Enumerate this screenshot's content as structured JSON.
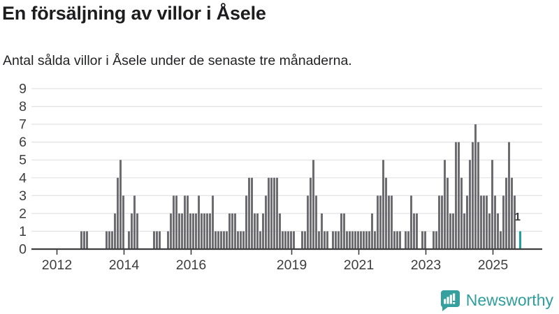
{
  "header": {
    "title": "En försäljning av villor i Åsele",
    "subtitle": "Antal sålda villor i Åsele under de senaste tre månaderna."
  },
  "chart_data": {
    "type": "bar",
    "title": "En försäljning av villor i Åsele",
    "subtitle": "Antal sålda villor i Åsele under de senaste tre månaderna.",
    "frequency": "monthly",
    "x_start_month": "2011-04",
    "x_end_month": "2025-10",
    "values": [
      0,
      0,
      0,
      0,
      0,
      0,
      0,
      0,
      0,
      0,
      0,
      0,
      0,
      0,
      0,
      0,
      0,
      1,
      1,
      1,
      0,
      0,
      0,
      0,
      0,
      0,
      1,
      1,
      1,
      2,
      4,
      5,
      3,
      0,
      1,
      2,
      3,
      2,
      0,
      0,
      0,
      0,
      0,
      1,
      1,
      1,
      0,
      0,
      1,
      2,
      3,
      3,
      2,
      2,
      3,
      3,
      2,
      2,
      2,
      3,
      2,
      2,
      2,
      2,
      3,
      1,
      1,
      1,
      1,
      1,
      2,
      2,
      2,
      1,
      1,
      1,
      3,
      4,
      4,
      2,
      2,
      1,
      2,
      3,
      4,
      4,
      4,
      4,
      2,
      1,
      1,
      1,
      1,
      1,
      0,
      0,
      1,
      1,
      3,
      4,
      5,
      3,
      1,
      2,
      1,
      1,
      0,
      1,
      1,
      1,
      2,
      2,
      1,
      1,
      1,
      1,
      1,
      1,
      1,
      1,
      1,
      2,
      1,
      3,
      3,
      5,
      4,
      3,
      3,
      1,
      1,
      1,
      0,
      1,
      1,
      3,
      2,
      2,
      0,
      1,
      1,
      0,
      0,
      1,
      1,
      3,
      3,
      5,
      4,
      2,
      2,
      6,
      6,
      4,
      2,
      3,
      5,
      6,
      7,
      6,
      3,
      3,
      3,
      2,
      5,
      3,
      2,
      1,
      3,
      4,
      6,
      4,
      3,
      0,
      1
    ],
    "highlight": {
      "index": 174,
      "value": 1,
      "label": "1",
      "color": "#1ca1a1"
    },
    "ylim": [
      0,
      9
    ],
    "y_ticks": [
      0,
      1,
      2,
      3,
      4,
      5,
      6,
      7,
      8,
      9
    ],
    "x_tick_years": [
      2012,
      2014,
      2016,
      2019,
      2021,
      2023,
      2025
    ],
    "grid": true,
    "legend": "none",
    "bar_color": "#6c6c71",
    "gridline_color": "#e4e4e4",
    "axis_color": "#3f3f40",
    "tick_label_color": "#3d3d3f"
  },
  "footer": {
    "logo_text": "Newsworthy",
    "logo_color": "#2f9e9c",
    "logo_icon_color": "#35a09d"
  }
}
